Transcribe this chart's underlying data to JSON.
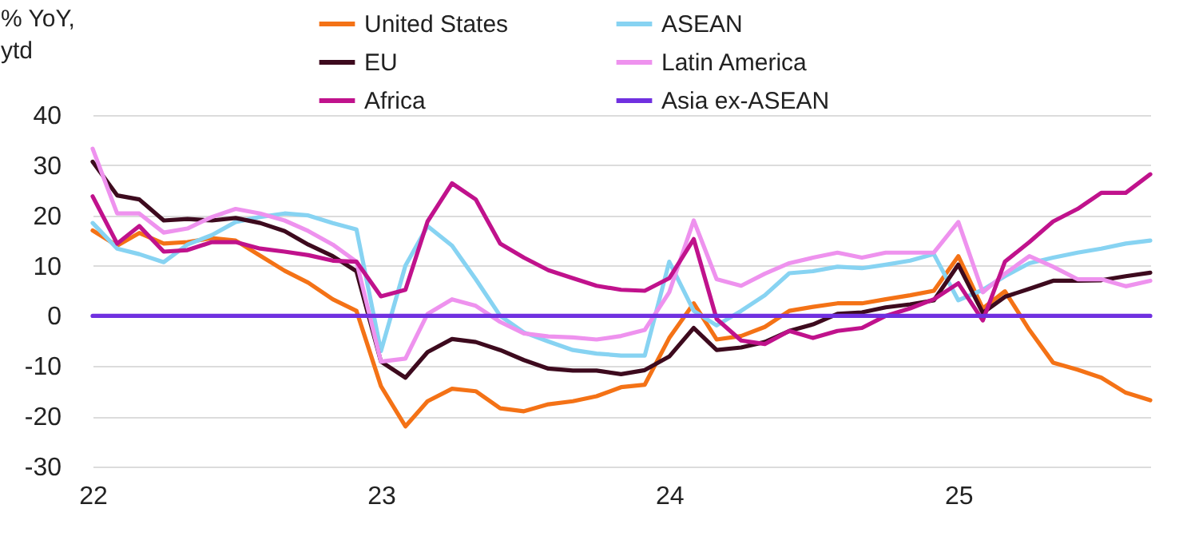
{
  "chart_data": {
    "type": "line",
    "ylabel": "% YoY,\nytd",
    "x": [
      "2022-01",
      "2022-02",
      "2022-03",
      "2022-04",
      "2022-05",
      "2022-06",
      "2022-07",
      "2022-08",
      "2022-09",
      "2022-10",
      "2022-11",
      "2022-12",
      "2023-01",
      "2023-02",
      "2023-03",
      "2023-04",
      "2023-05",
      "2023-06",
      "2023-07",
      "2023-08",
      "2023-09",
      "2023-10",
      "2023-11",
      "2023-12",
      "2024-01",
      "2024-02",
      "2024-03",
      "2024-04",
      "2024-05",
      "2024-06",
      "2024-07",
      "2024-08",
      "2024-09",
      "2024-10",
      "2024-11",
      "2024-12",
      "2025-01",
      "2025-02",
      "2025-03",
      "2025-04",
      "2025-05",
      "2025-06",
      "2025-07",
      "2025-08",
      "2025-09"
    ],
    "series": [
      {
        "name": "United States",
        "color": "#f47216",
        "values": [
          17,
          14,
          16.5,
          14.4,
          14.7,
          15.5,
          15,
          12,
          9,
          6.6,
          3.3,
          1,
          -14,
          -22,
          -17,
          -14.5,
          -15,
          -18.4,
          -19,
          -17.6,
          -17,
          -16,
          -14.2,
          -13.7,
          -4.4,
          2.5,
          -4.7,
          -4,
          -2.2,
          1,
          1.8,
          2.5,
          2.5,
          3.3,
          4.1,
          5,
          11.9,
          1.5,
          4.9,
          -2.8,
          -9.3,
          -10.7,
          -12.3,
          -15.3,
          -16.8
        ]
      },
      {
        "name": "ASEAN",
        "color": "#87d3f2",
        "values": [
          18.5,
          13.4,
          12.3,
          10.7,
          14.2,
          16.1,
          18.7,
          19.7,
          20.4,
          20,
          18.5,
          17.2,
          -7,
          10,
          17.9,
          14,
          7.3,
          0,
          -3.3,
          -5.1,
          -6.8,
          -7.5,
          -7.9,
          -7.9,
          10.8,
          1,
          -1.9,
          1,
          4.1,
          8.5,
          8.9,
          9.8,
          9.5,
          10.2,
          11,
          12.3,
          3.1,
          5.2,
          7.9,
          10.5,
          11.6,
          12.6,
          13.4,
          14.4,
          15
        ]
      },
      {
        "name": "EU",
        "color": "#3d0a1e",
        "values": [
          30.7,
          24,
          23.2,
          19,
          19.3,
          19,
          19.5,
          18.5,
          16.9,
          14.2,
          11.9,
          8.9,
          -9.1,
          -12.3,
          -7.2,
          -4.6,
          -5.2,
          -6.8,
          -8.8,
          -10.5,
          -10.9,
          -10.9,
          -11.6,
          -10.8,
          -8.1,
          -2.4,
          -6.8,
          -6.3,
          -5.2,
          -3,
          -1.7,
          0.4,
          0.7,
          1.7,
          2.3,
          3.1,
          10.2,
          0.6,
          3.8,
          5.4,
          7,
          7,
          7.1,
          7.9,
          8.6
        ]
      },
      {
        "name": "Latin America",
        "color": "#ee92ee",
        "values": [
          33.3,
          20.4,
          20.4,
          16.6,
          17.4,
          19.7,
          21.3,
          20.4,
          19,
          16.9,
          14.2,
          10.8,
          -9.1,
          -8.5,
          0.4,
          3.3,
          2,
          -1.2,
          -3.5,
          -4.1,
          -4.3,
          -4.7,
          -4,
          -2.8,
          4.7,
          19,
          7.3,
          6,
          8.4,
          10.5,
          11.6,
          12.6,
          11.6,
          12.6,
          12.6,
          12.6,
          18.7,
          4.7,
          8.4,
          11.9,
          9.8,
          7.3,
          7.3,
          5.9,
          7
        ]
      },
      {
        "name": "Africa",
        "color": "#c0128c",
        "values": [
          23.8,
          14.4,
          17.9,
          12.8,
          13.1,
          14.7,
          14.7,
          13.4,
          12.8,
          12.1,
          11,
          10.8,
          3.9,
          5.2,
          18.8,
          26.4,
          23.2,
          14.4,
          11.6,
          9.1,
          7.5,
          6,
          5.2,
          5,
          7.5,
          15.3,
          -0.6,
          -4.9,
          -5.6,
          -3,
          -4.4,
          -3,
          -2.4,
          0,
          1.5,
          3.3,
          6.5,
          -0.9,
          10.8,
          14.7,
          18.8,
          21.3,
          24.5,
          24.5,
          28.2
        ]
      },
      {
        "name": "Asia ex-ASEAN",
        "color": "#7030e0",
        "values": [
          0,
          0,
          0,
          0,
          0,
          0,
          0,
          0,
          0,
          0,
          0,
          0,
          0,
          0,
          0,
          0,
          0,
          0,
          0,
          0,
          0,
          0,
          0,
          0,
          0,
          0,
          0,
          0,
          0,
          0,
          0,
          0,
          0,
          0,
          0,
          0,
          0,
          0,
          0,
          0,
          0,
          0,
          0,
          0,
          0
        ]
      }
    ],
    "xlim": [
      "2022-01",
      "2025-09"
    ],
    "xticks": [
      {
        "value": "2022-01",
        "label": "22"
      },
      {
        "value": "2023-01",
        "label": "23"
      },
      {
        "value": "2024-01",
        "label": "24"
      },
      {
        "value": "2025-01",
        "label": "25"
      }
    ],
    "ylim": [
      -30,
      40
    ],
    "yticks": [
      -30,
      -20,
      -10,
      0,
      10,
      20,
      30,
      40
    ],
    "grid": "y",
    "legend": "top",
    "line_style": "solid",
    "marker": "none"
  }
}
